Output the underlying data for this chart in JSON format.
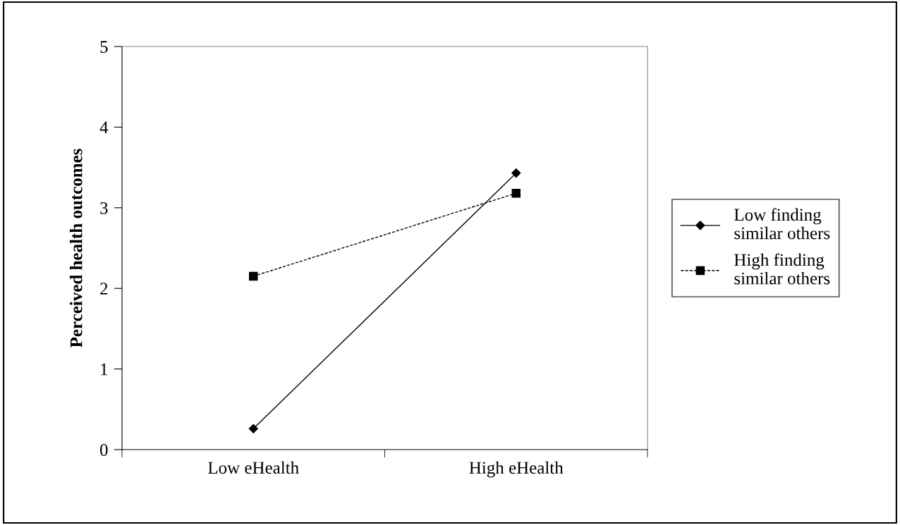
{
  "chart_data": {
    "type": "line",
    "ylabel": "Perceived health outcomes",
    "categories": [
      "Low eHealth",
      "High eHealth"
    ],
    "series": [
      {
        "name": "Low finding\nsimilar others",
        "color": "#000000",
        "values": [
          0.26,
          3.43
        ],
        "marker": "diamond",
        "line_style": "solid"
      },
      {
        "name": "High finding\nsimilar others",
        "color": "#000000",
        "values": [
          2.15,
          3.18
        ],
        "marker": "square",
        "line_style": "dashed"
      }
    ],
    "ylim": [
      0,
      5
    ],
    "yticks": [
      0,
      1,
      2,
      3,
      4,
      5
    ],
    "grid": false,
    "legend": "right"
  }
}
